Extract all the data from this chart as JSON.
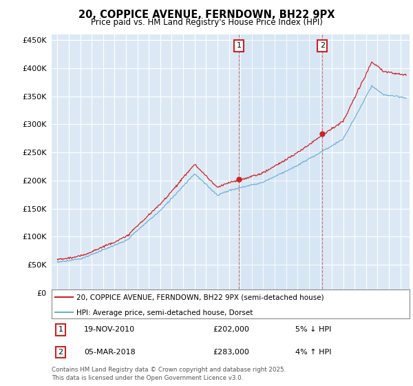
{
  "title": "20, COPPICE AVENUE, FERNDOWN, BH22 9PX",
  "subtitle": "Price paid vs. HM Land Registry's House Price Index (HPI)",
  "legend_line1": "20, COPPICE AVENUE, FERNDOWN, BH22 9PX (semi-detached house)",
  "legend_line2": "HPI: Average price, semi-detached house, Dorset",
  "sale1_date": "19-NOV-2010",
  "sale1_price_str": "£202,000",
  "sale1_pct": "5% ↓ HPI",
  "sale1_year": 2010.88,
  "sale1_value": 202000,
  "sale2_date": "05-MAR-2018",
  "sale2_price_str": "£283,000",
  "sale2_pct": "4% ↑ HPI",
  "sale2_year": 2018.17,
  "sale2_value": 283000,
  "ylim": [
    0,
    460000
  ],
  "yticks": [
    0,
    50000,
    100000,
    150000,
    200000,
    250000,
    300000,
    350000,
    400000,
    450000
  ],
  "footer": "Contains HM Land Registry data © Crown copyright and database right 2025.\nThis data is licensed under the Open Government Licence v3.0.",
  "plot_bg_color": "#dce9f5",
  "fig_bg_color": "#ffffff",
  "hpi_color": "#6baed6",
  "price_color": "#cc2222",
  "vline_color": "#cc2222",
  "annotation_box_color": "#cc2222",
  "grid_color": "#ffffff"
}
